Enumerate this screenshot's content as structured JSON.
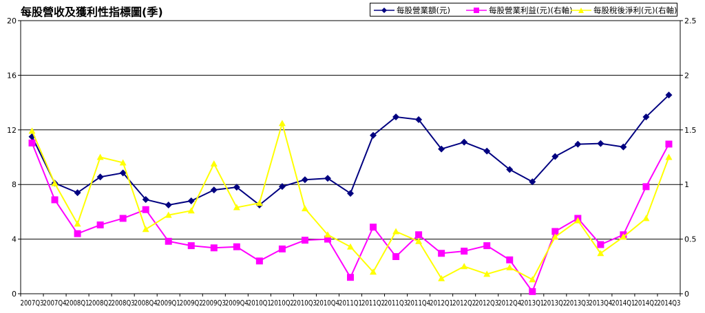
{
  "chart_data": {
    "type": "line",
    "title": "每股營收及獲利性指標圖(季)",
    "categories": [
      "2007Q3",
      "2007Q4",
      "2008Q1",
      "2008Q2",
      "2008Q3",
      "2008Q4",
      "2009Q1",
      "2009Q2",
      "2009Q3",
      "2009Q4",
      "2010Q1",
      "2010Q2",
      "2010Q3",
      "2010Q4",
      "2011Q1",
      "2011Q2",
      "2011Q3",
      "2011Q4",
      "2012Q1",
      "2012Q2",
      "2012Q3",
      "2012Q4",
      "2013Q1",
      "2013Q2",
      "2013Q3",
      "2013Q4",
      "2014Q1",
      "2014Q2",
      "2014Q3"
    ],
    "y_left": {
      "min": 0,
      "max": 20,
      "ticks": [
        "0",
        "4",
        "8",
        "12",
        "16",
        "20"
      ]
    },
    "y_right": {
      "min": 0,
      "max": 2.5,
      "ticks": [
        "0",
        "0.5",
        "1",
        "1.5",
        "2",
        "2.5"
      ]
    },
    "grid": "horizontal",
    "legend_position": "top-right",
    "series": [
      {
        "name": "每股營業額(元)",
        "axis": "left",
        "color": "#000080",
        "marker": "diamond",
        "values": [
          11.5,
          8.1,
          7.4,
          8.55,
          8.85,
          6.9,
          6.5,
          6.8,
          7.6,
          7.8,
          6.5,
          7.85,
          8.35,
          8.45,
          7.35,
          11.6,
          12.95,
          12.75,
          10.6,
          11.1,
          10.45,
          9.1,
          8.2,
          10.05,
          10.95,
          11.0,
          10.75,
          12.95,
          14.55
        ]
      },
      {
        "name": "每股營業利益(元)(右軸)",
        "axis": "right",
        "color": "#FF00FF",
        "marker": "square",
        "values": [
          1.38,
          0.86,
          0.55,
          0.63,
          0.69,
          0.77,
          0.48,
          0.44,
          0.42,
          0.43,
          0.3,
          0.41,
          0.49,
          0.5,
          0.15,
          0.61,
          0.34,
          0.54,
          0.37,
          0.39,
          0.44,
          0.31,
          0.02,
          0.57,
          0.69,
          0.45,
          0.54,
          0.98,
          1.37
        ]
      },
      {
        "name": "每股稅後淨利(元)(右軸)",
        "axis": "right",
        "color": "#FFFF00",
        "marker": "triangle",
        "values": [
          1.49,
          1.01,
          0.64,
          1.25,
          1.2,
          0.59,
          0.72,
          0.76,
          1.19,
          0.79,
          0.83,
          1.56,
          0.78,
          0.54,
          0.43,
          0.2,
          0.57,
          0.48,
          0.14,
          0.25,
          0.18,
          0.24,
          0.13,
          0.52,
          0.67,
          0.37,
          0.52,
          0.69,
          1.25
        ]
      }
    ]
  }
}
